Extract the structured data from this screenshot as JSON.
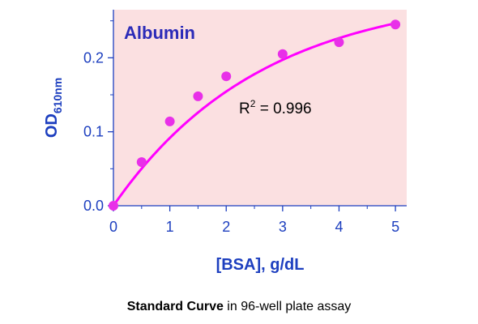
{
  "chart_data": {
    "type": "scatter",
    "title": "Albumin",
    "xlabel": "[BSA], g/dL",
    "ylabel": {
      "main": "OD",
      "subscript": "610nm"
    },
    "xlim": [
      0,
      5.2
    ],
    "ylim": [
      0,
      0.265
    ],
    "x_ticks": [
      "0",
      "1",
      "2",
      "3",
      "4",
      "5"
    ],
    "y_ticks": [
      "0.0",
      "0.1",
      "0.2"
    ],
    "x_tick_values": [
      0,
      1,
      2,
      3,
      4,
      5
    ],
    "y_tick_values": [
      0.0,
      0.1,
      0.2
    ],
    "series": [
      {
        "x": [
          0,
          0.5,
          1,
          1.5,
          2,
          3,
          4,
          5
        ],
        "y": [
          0.0,
          0.059,
          0.114,
          0.148,
          0.175,
          0.205,
          0.221,
          0.245
        ]
      }
    ],
    "fit": {
      "type": "exponential-saturation",
      "ymax": 0.29,
      "k": 0.38
    },
    "annotation": {
      "text": "R",
      "superscript": "2",
      "rest": " = 0.996"
    },
    "grid": false,
    "colors": {
      "plot_background": "#fbe0e1",
      "marker": "#e830e8",
      "curve": "#ff00ff",
      "title": "#2b2bb8",
      "axes": "#1d3fbf"
    }
  },
  "caption": {
    "bold": "Standard Curve",
    "rest": " in 96-well plate assay"
  }
}
